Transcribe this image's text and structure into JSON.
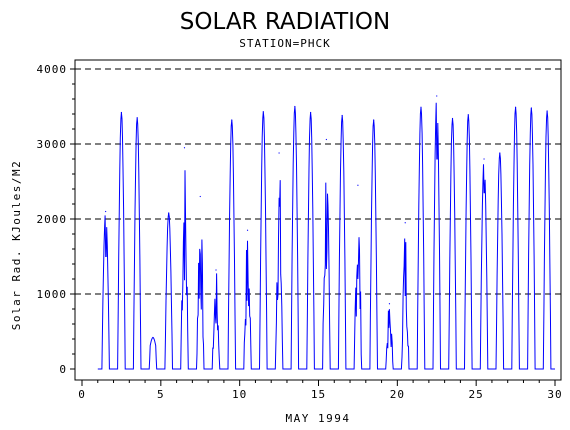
{
  "chart_data": {
    "type": "line",
    "title": "SOLAR RADIATION",
    "subtitle": "STATION=PHCK",
    "xlabel": "MAY 1994",
    "ylabel": "Solar Rad. KJoules/M2",
    "xlim": [
      0,
      30
    ],
    "ylim": [
      0,
      4000
    ],
    "xticks": [
      "0",
      "5",
      "10",
      "15",
      "20",
      "25",
      "30"
    ],
    "yticks": [
      "0",
      "1000",
      "2000",
      "3000",
      "4000"
    ],
    "grid": "horizontal dashed",
    "colors": {
      "series": "#0000ff",
      "axes": "#000000"
    },
    "series": [
      {
        "daily": [
          {
            "day": 1,
            "peak": 2100,
            "shape": "dip",
            "dip_value": 1500
          },
          {
            "day": 2,
            "peak": 3420
          },
          {
            "day": 3,
            "peak": 3350
          },
          {
            "day": 4,
            "peak": 420,
            "shape": "flat"
          },
          {
            "day": 5,
            "peak": 2080
          },
          {
            "day": 6,
            "peak": 2950,
            "shape": "ragged"
          },
          {
            "day": 7,
            "peak": 2300,
            "shape": "ragged"
          },
          {
            "day": 8,
            "peak": 1320,
            "shape": "ragged"
          },
          {
            "day": 9,
            "peak": 3320
          },
          {
            "day": 10,
            "peak": 1850,
            "shape": "ragged"
          },
          {
            "day": 11,
            "peak": 3430
          },
          {
            "day": 12,
            "peak": 2880,
            "shape": "ragged"
          },
          {
            "day": 13,
            "peak": 3500
          },
          {
            "day": 14,
            "peak": 3420
          },
          {
            "day": 15,
            "peak": 3060,
            "shape": "ragged"
          },
          {
            "day": 16,
            "peak": 3380
          },
          {
            "day": 17,
            "peak": 2450,
            "shape": "ragged"
          },
          {
            "day": 18,
            "peak": 3320
          },
          {
            "day": 19,
            "peak": 870,
            "shape": "ragged"
          },
          {
            "day": 20,
            "peak": 1950,
            "shape": "ragged"
          },
          {
            "day": 21,
            "peak": 3490
          },
          {
            "day": 22,
            "peak": 3640,
            "shape": "dip",
            "dip_value": 2800
          },
          {
            "day": 23,
            "peak": 3340
          },
          {
            "day": 24,
            "peak": 3390
          },
          {
            "day": 25,
            "peak": 2800,
            "shape": "dip",
            "dip_value": 2350
          },
          {
            "day": 26,
            "peak": 2880
          },
          {
            "day": 27,
            "peak": 3490
          },
          {
            "day": 28,
            "peak": 3480
          },
          {
            "day": 29,
            "peak": 3440
          }
        ]
      }
    ]
  }
}
